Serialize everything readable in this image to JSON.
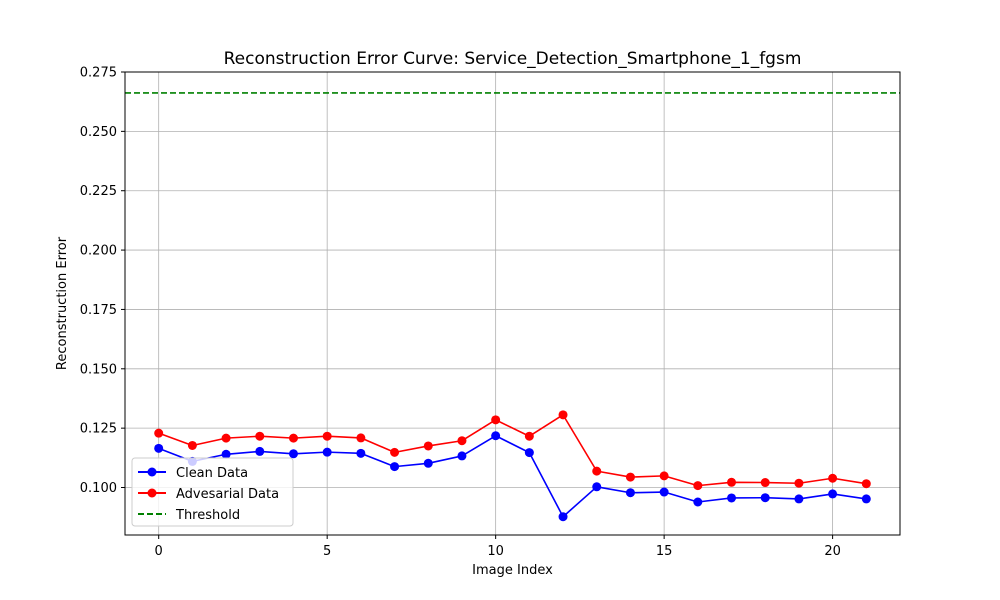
{
  "chart_data": {
    "type": "line",
    "title": "Reconstruction Error Curve: Service_Detection_Smartphone_1_fgsm",
    "xlabel": "Image Index",
    "ylabel": "Reconstruction Error",
    "xlim": [
      -1,
      22
    ],
    "ylim": [
      0.08,
      0.275
    ],
    "xticks": [
      0,
      5,
      10,
      15,
      20
    ],
    "yticks": [
      0.1,
      0.125,
      0.15,
      0.175,
      0.2,
      0.225,
      0.25,
      0.275
    ],
    "ytick_labels": [
      "0.100",
      "0.125",
      "0.150",
      "0.175",
      "0.200",
      "0.225",
      "0.250",
      "0.275"
    ],
    "xtick_labels": [
      "0",
      "5",
      "10",
      "15",
      "20"
    ],
    "grid": true,
    "legend_position": "lower-left",
    "x": [
      0,
      1,
      2,
      3,
      4,
      5,
      6,
      7,
      8,
      9,
      10,
      11,
      12,
      13,
      14,
      15,
      16,
      17,
      18,
      19,
      20,
      21
    ],
    "series": [
      {
        "name": "Clean Data",
        "color": "#0000ff",
        "marker": "circle",
        "style": "solid",
        "values": [
          0.1165,
          0.111,
          0.114,
          0.1152,
          0.1142,
          0.1149,
          0.1144,
          0.1088,
          0.1102,
          0.1133,
          0.1218,
          0.1147,
          0.0877,
          0.1003,
          0.0978,
          0.0981,
          0.0939,
          0.0956,
          0.0957,
          0.0952,
          0.0973,
          0.0952
        ]
      },
      {
        "name": "Advesarial Data",
        "color": "#ff0000",
        "marker": "circle",
        "style": "solid",
        "values": [
          0.1229,
          0.1177,
          0.1208,
          0.1216,
          0.1208,
          0.1216,
          0.1209,
          0.1148,
          0.1175,
          0.1197,
          0.1285,
          0.1216,
          0.1306,
          0.1069,
          0.1044,
          0.1049,
          0.1008,
          0.1022,
          0.1021,
          0.1018,
          0.1039,
          0.1016
        ]
      }
    ],
    "threshold": {
      "name": "Threshold",
      "value": 0.2662,
      "color": "#008000",
      "style": "dashed"
    }
  }
}
